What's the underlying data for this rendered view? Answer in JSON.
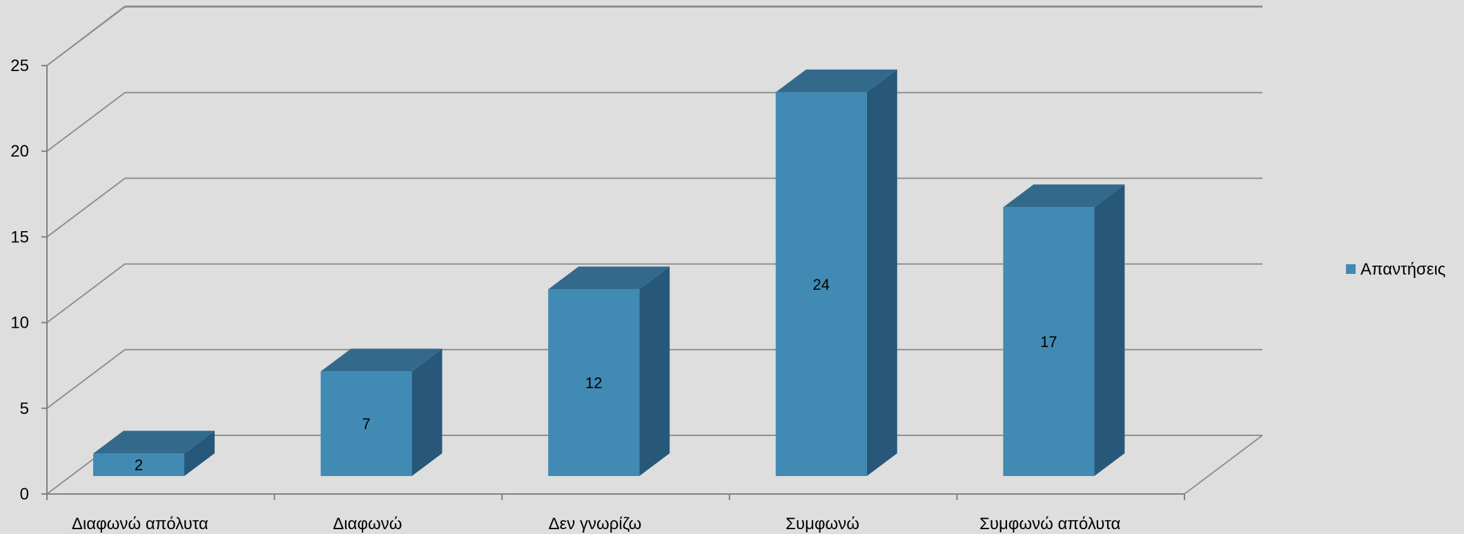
{
  "chart_data": {
    "type": "bar",
    "style": "3d-column",
    "categories": [
      "Διαφωνώ απόλυτα",
      "Διαφωνώ",
      "Δεν γνωρίζω",
      "Συμφωνώ",
      "Συμφωνώ απόλυτα"
    ],
    "series": [
      {
        "name": "Απαντήσεις",
        "values": [
          2,
          7,
          12,
          24,
          17
        ]
      }
    ],
    "yticks": [
      "0",
      "5",
      "10",
      "15",
      "20",
      "25"
    ],
    "ylim": [
      0,
      25
    ],
    "grid": true,
    "legend_position": "right",
    "data_labels": true,
    "colors": {
      "background": "#dedede",
      "bar_front": "#418ab3",
      "bar_top": "#336a8c",
      "bar_side": "#27587a",
      "grid": "#8f8f8f",
      "axis": "#808080"
    }
  }
}
